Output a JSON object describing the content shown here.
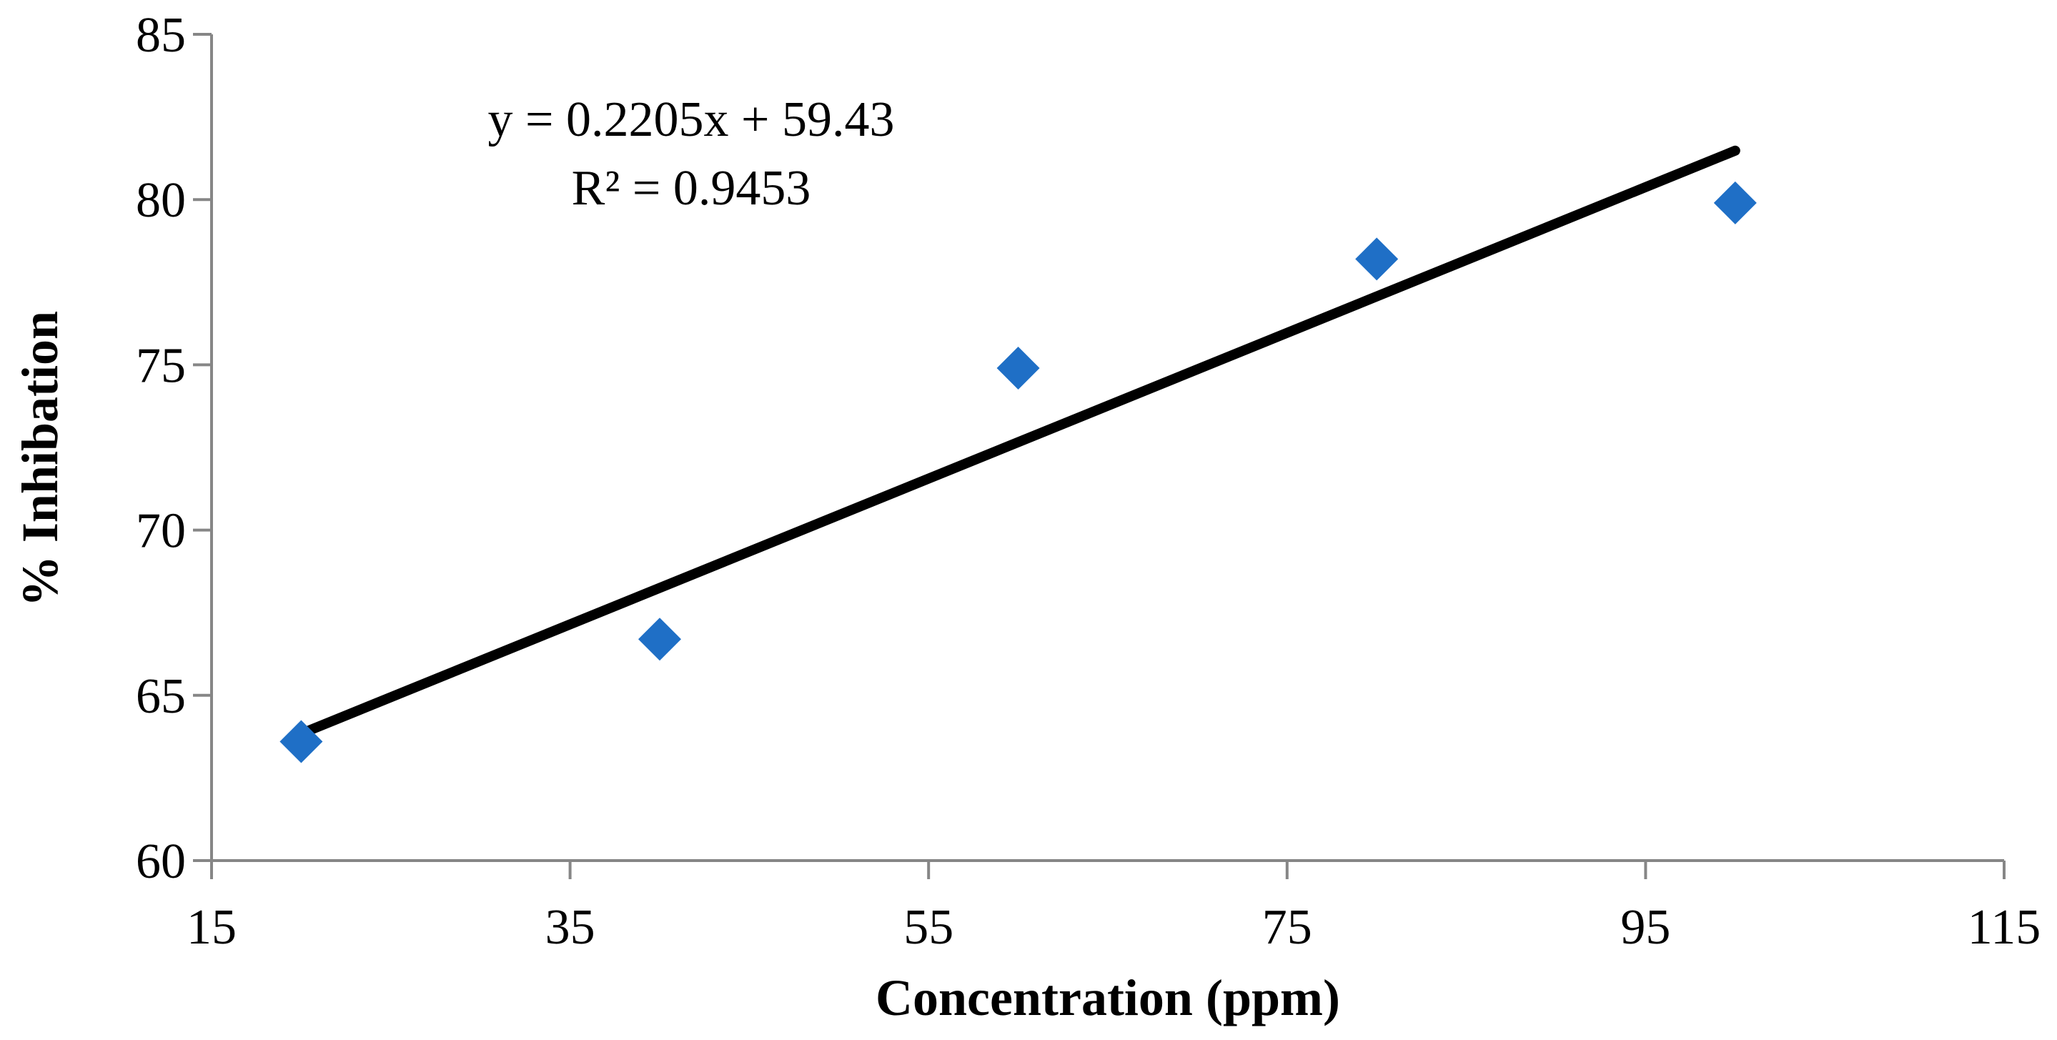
{
  "chart_data": {
    "type": "scatter",
    "title": "",
    "xlabel": "Concentration (ppm)",
    "ylabel": "% Inhibation",
    "xlim": [
      15,
      115
    ],
    "ylim": [
      60,
      85
    ],
    "xticks": [
      15,
      35,
      55,
      75,
      95,
      115
    ],
    "yticks": [
      60,
      65,
      70,
      75,
      80,
      85
    ],
    "grid": false,
    "legend": "none",
    "series": [
      {
        "name": "% Inhibation",
        "marker": "diamond",
        "color": "#1f6fc6",
        "x": [
          20,
          40,
          60,
          80,
          100
        ],
        "y": [
          63.6,
          66.7,
          74.9,
          78.2,
          79.9
        ]
      }
    ],
    "trendline": {
      "type": "linear",
      "slope": 0.2205,
      "intercept": 59.43,
      "x_range": [
        20,
        100
      ],
      "color": "#000000"
    },
    "annotations": [
      "y = 0.2205x + 59.43",
      "R² = 0.9453"
    ]
  }
}
